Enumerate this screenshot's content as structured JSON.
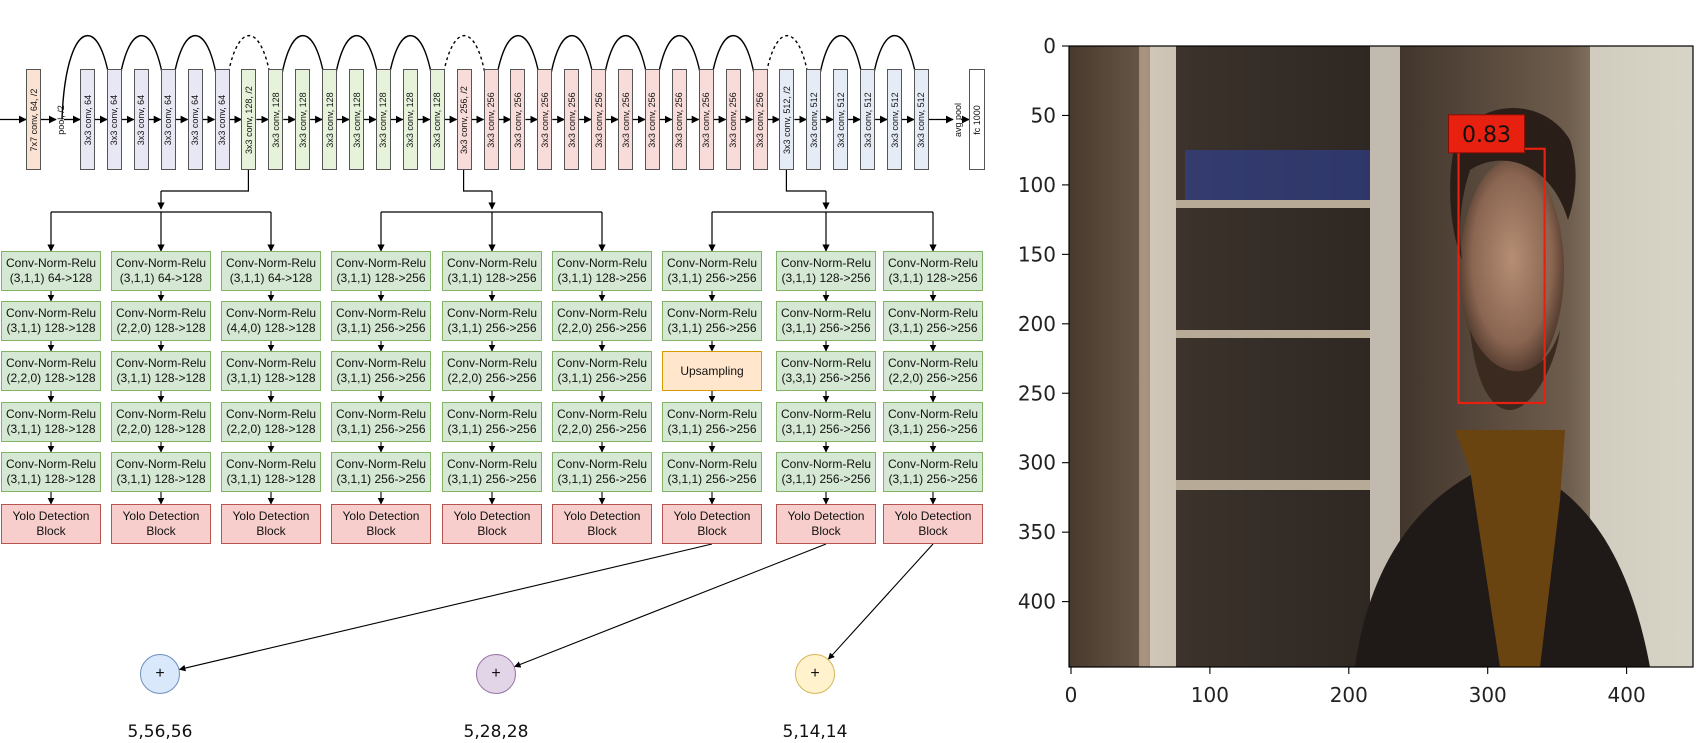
{
  "backbone": [
    {
      "label": "7x7 conv, 64, /2",
      "kind": "stem"
    },
    {
      "label": "pool, /2",
      "kind": "plain"
    },
    {
      "label": "3x3 conv, 64",
      "kind": "c64"
    },
    {
      "label": "3x3 conv, 64",
      "kind": "c64"
    },
    {
      "label": "3x3 conv, 64",
      "kind": "c64"
    },
    {
      "label": "3x3 conv, 64",
      "kind": "c64"
    },
    {
      "label": "3x3 conv, 64",
      "kind": "c64"
    },
    {
      "label": "3x3 conv, 64",
      "kind": "c64"
    },
    {
      "label": "3x3 conv, 128, /2",
      "kind": "c128"
    },
    {
      "label": "3x3 conv, 128",
      "kind": "c128"
    },
    {
      "label": "3x3 conv, 128",
      "kind": "c128"
    },
    {
      "label": "3x3 conv, 128",
      "kind": "c128"
    },
    {
      "label": "3x3 conv, 128",
      "kind": "c128"
    },
    {
      "label": "3x3 conv, 128",
      "kind": "c128"
    },
    {
      "label": "3x3 conv, 128",
      "kind": "c128"
    },
    {
      "label": "3x3 conv, 128",
      "kind": "c128"
    },
    {
      "label": "3x3 conv, 256, /2",
      "kind": "c256"
    },
    {
      "label": "3x3 conv, 256",
      "kind": "c256"
    },
    {
      "label": "3x3 conv, 256",
      "kind": "c256"
    },
    {
      "label": "3x3 conv, 256",
      "kind": "c256"
    },
    {
      "label": "3x3 conv, 256",
      "kind": "c256"
    },
    {
      "label": "3x3 conv, 256",
      "kind": "c256"
    },
    {
      "label": "3x3 conv, 256",
      "kind": "c256"
    },
    {
      "label": "3x3 conv, 256",
      "kind": "c256"
    },
    {
      "label": "3x3 conv, 256",
      "kind": "c256"
    },
    {
      "label": "3x3 conv, 256",
      "kind": "c256"
    },
    {
      "label": "3x3 conv, 256",
      "kind": "c256"
    },
    {
      "label": "3x3 conv, 256",
      "kind": "c256"
    },
    {
      "label": "3x3 conv, 512, /2",
      "kind": "c512"
    },
    {
      "label": "3x3 conv, 512",
      "kind": "c512"
    },
    {
      "label": "3x3 conv, 512",
      "kind": "c512"
    },
    {
      "label": "3x3 conv, 512",
      "kind": "c512"
    },
    {
      "label": "3x3 conv, 512",
      "kind": "c512"
    },
    {
      "label": "3x3 conv, 512",
      "kind": "c512"
    },
    {
      "label": "avg pool",
      "kind": "plain"
    },
    {
      "label": "fc 1000",
      "kind": "white"
    }
  ],
  "box_colors": {
    "stem": {
      "fill": "#fae3d3",
      "stroke": "#555555"
    },
    "c64": {
      "fill": "#e8e8f4",
      "stroke": "#555555"
    },
    "c128": {
      "fill": "#e6f2da",
      "stroke": "#555555"
    },
    "c256": {
      "fill": "#f7dcda",
      "stroke": "#555555"
    },
    "c512": {
      "fill": "#e6ecf5",
      "stroke": "#555555"
    },
    "white": {
      "fill": "#ffffff",
      "stroke": "#555555"
    }
  },
  "head_columns": [
    {
      "blocks": [
        {
          "type": "cnr",
          "text": "Conv-Norm-Relu\n(3,1,1) 64->128"
        },
        {
          "type": "cnr",
          "text": "Conv-Norm-Relu\n(3,1,1) 128->128"
        },
        {
          "type": "cnr",
          "text": "Conv-Norm-Relu\n(2,2,0) 128->128"
        },
        {
          "type": "cnr",
          "text": "Conv-Norm-Relu\n(3,1,1) 128->128"
        },
        {
          "type": "cnr",
          "text": "Conv-Norm-Relu\n(3,1,1) 128->128"
        },
        {
          "type": "yolo",
          "text": "Yolo Detection\nBlock"
        }
      ]
    },
    {
      "blocks": [
        {
          "type": "cnr",
          "text": "Conv-Norm-Relu\n(3,1,1) 64->128"
        },
        {
          "type": "cnr",
          "text": "Conv-Norm-Relu\n(2,2,0) 128->128"
        },
        {
          "type": "cnr",
          "text": "Conv-Norm-Relu\n(3,1,1) 128->128"
        },
        {
          "type": "cnr",
          "text": "Conv-Norm-Relu\n(2,2,0) 128->128"
        },
        {
          "type": "cnr",
          "text": "Conv-Norm-Relu\n(3,1,1) 128->128"
        },
        {
          "type": "yolo",
          "text": "Yolo Detection\nBlock"
        }
      ]
    },
    {
      "blocks": [
        {
          "type": "cnr",
          "text": "Conv-Norm-Relu\n(3,1,1) 64->128"
        },
        {
          "type": "cnr",
          "text": "Conv-Norm-Relu\n(4,4,0) 128->128"
        },
        {
          "type": "cnr",
          "text": "Conv-Norm-Relu\n(3,1,1) 128->128"
        },
        {
          "type": "cnr",
          "text": "Conv-Norm-Relu\n(2,2,0) 128->128"
        },
        {
          "type": "cnr",
          "text": "Conv-Norm-Relu\n(3,1,1) 128->128"
        },
        {
          "type": "yolo",
          "text": "Yolo Detection\nBlock"
        }
      ]
    },
    {
      "blocks": [
        {
          "type": "cnr",
          "text": "Conv-Norm-Relu\n(3,1,1) 128->256"
        },
        {
          "type": "cnr",
          "text": "Conv-Norm-Relu\n(3,1,1) 256->256"
        },
        {
          "type": "cnr",
          "text": "Conv-Norm-Relu\n(3,1,1) 256->256"
        },
        {
          "type": "cnr",
          "text": "Conv-Norm-Relu\n(3,1,1) 256->256"
        },
        {
          "type": "cnr",
          "text": "Conv-Norm-Relu\n(3,1,1) 256->256"
        },
        {
          "type": "yolo",
          "text": "Yolo Detection\nBlock"
        }
      ]
    },
    {
      "blocks": [
        {
          "type": "cnr",
          "text": "Conv-Norm-Relu\n(3,1,1) 128->256"
        },
        {
          "type": "cnr",
          "text": "Conv-Norm-Relu\n(3,1,1) 256->256"
        },
        {
          "type": "cnr",
          "text": "Conv-Norm-Relu\n(2,2,0) 256->256"
        },
        {
          "type": "cnr",
          "text": "Conv-Norm-Relu\n(3,1,1) 256->256"
        },
        {
          "type": "cnr",
          "text": "Conv-Norm-Relu\n(3,1,1) 256->256"
        },
        {
          "type": "yolo",
          "text": "Yolo Detection\nBlock"
        }
      ]
    },
    {
      "blocks": [
        {
          "type": "cnr",
          "text": "Conv-Norm-Relu\n(3,1,1) 128->256"
        },
        {
          "type": "cnr",
          "text": "Conv-Norm-Relu\n(2,2,0) 256->256"
        },
        {
          "type": "cnr",
          "text": "Conv-Norm-Relu\n(3,1,1) 256->256"
        },
        {
          "type": "cnr",
          "text": "Conv-Norm-Relu\n(2,2,0) 256->256"
        },
        {
          "type": "cnr",
          "text": "Conv-Norm-Relu\n(3,1,1) 256->256"
        },
        {
          "type": "yolo",
          "text": "Yolo Detection\nBlock"
        }
      ]
    },
    {
      "blocks": [
        {
          "type": "cnr",
          "text": "Conv-Norm-Relu\n(3,1,1) 256->256"
        },
        {
          "type": "cnr",
          "text": "Conv-Norm-Relu\n(3,1,1) 256->256"
        },
        {
          "type": "ups",
          "text": "Upsampling"
        },
        {
          "type": "cnr",
          "text": "Conv-Norm-Relu\n(3,1,1) 256->256"
        },
        {
          "type": "cnr",
          "text": "Conv-Norm-Relu\n(3,1,1) 256->256"
        },
        {
          "type": "yolo",
          "text": "Yolo Detection\nBlock"
        }
      ]
    },
    {
      "blocks": [
        {
          "type": "cnr",
          "text": "Conv-Norm-Relu\n(3,1,1) 128->256"
        },
        {
          "type": "cnr",
          "text": "Conv-Norm-Relu\n(3,1,1) 256->256"
        },
        {
          "type": "cnr",
          "text": "Conv-Norm-Relu\n(3,3,1) 256->256"
        },
        {
          "type": "cnr",
          "text": "Conv-Norm-Relu\n(3,1,1) 256->256"
        },
        {
          "type": "cnr",
          "text": "Conv-Norm-Relu\n(3,1,1) 256->256"
        },
        {
          "type": "yolo",
          "text": "Yolo Detection\nBlock"
        }
      ]
    },
    {
      "blocks": [
        {
          "type": "cnr",
          "text": "Conv-Norm-Relu\n(3,1,1) 128->256"
        },
        {
          "type": "cnr",
          "text": "Conv-Norm-Relu\n(3,1,1) 256->256"
        },
        {
          "type": "cnr",
          "text": "Conv-Norm-Relu\n(2,2,0) 256->256"
        },
        {
          "type": "cnr",
          "text": "Conv-Norm-Relu\n(3,1,1) 256->256"
        },
        {
          "type": "cnr",
          "text": "Conv-Norm-Relu\n(3,1,1) 256->256"
        },
        {
          "type": "yolo",
          "text": "Yolo Detection\nBlock"
        }
      ]
    }
  ],
  "merge_nodes": [
    {
      "symbol": "+",
      "label": "5,56,56",
      "fill": "#dae8fc",
      "stroke": "#6c8ebf"
    },
    {
      "symbol": "+",
      "label": "5,28,28",
      "fill": "#e1d5e7",
      "stroke": "#9673a6"
    },
    {
      "symbol": "+",
      "label": "5,14,14",
      "fill": "#fff2cc",
      "stroke": "#d6b656"
    }
  ],
  "detection_plot": {
    "x_ticks": [
      "0",
      "100",
      "200",
      "300",
      "400"
    ],
    "y_ticks": [
      "0",
      "50",
      "100",
      "150",
      "200",
      "250",
      "300",
      "350",
      "400"
    ],
    "x_range": [
      0,
      448
    ],
    "y_range": [
      0,
      448
    ],
    "box": {
      "x1": 279,
      "y1": 74,
      "x2": 341,
      "y2": 257
    },
    "score": "0.83",
    "box_color": "#e8200f"
  }
}
